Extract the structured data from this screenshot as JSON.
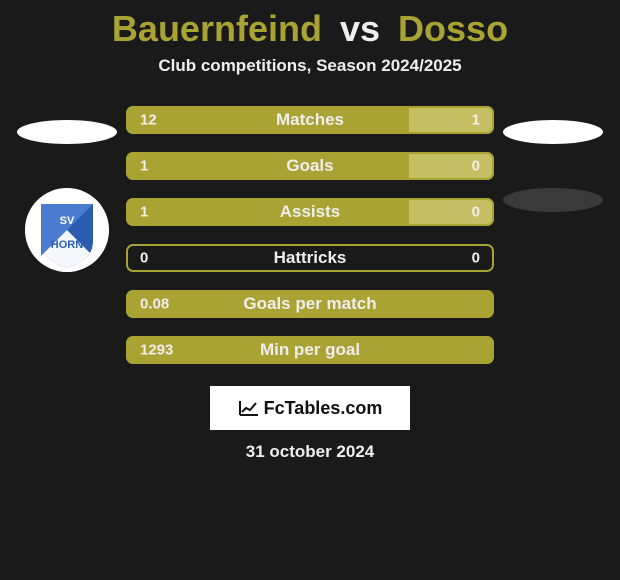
{
  "colors": {
    "background": "#1a1a1a",
    "primary": "#a9a333",
    "secondary": "#c5bf63",
    "text_light": "#eeeeee",
    "border": "#a9a333"
  },
  "title": {
    "player1": "Bauernfeind",
    "vs": "vs",
    "player2": "Dosso",
    "p1_color": "#a9a333",
    "vs_color": "#eeeeee",
    "p2_color": "#a9a333"
  },
  "subtitle": {
    "text": "Club competitions, Season 2024/2025",
    "color": "#eeeeee"
  },
  "left_side": {
    "items": [
      "ellipse_white",
      "club_badge"
    ]
  },
  "right_side": {
    "items": [
      "ellipse_white",
      "ellipse_dark"
    ]
  },
  "bars": [
    {
      "label": "Matches",
      "left_val": "12",
      "right_val": "1",
      "left_pct": 77,
      "right_pct": 23,
      "left_color": "#a9a333",
      "right_color": "#c5bf63",
      "text_color": "#eeeeee"
    },
    {
      "label": "Goals",
      "left_val": "1",
      "right_val": "0",
      "left_pct": 77,
      "right_pct": 23,
      "left_color": "#a9a333",
      "right_color": "#c5bf63",
      "text_color": "#eeeeee"
    },
    {
      "label": "Assists",
      "left_val": "1",
      "right_val": "0",
      "left_pct": 77,
      "right_pct": 23,
      "left_color": "#a9a333",
      "right_color": "#c5bf63",
      "text_color": "#eeeeee"
    },
    {
      "label": "Hattricks",
      "left_val": "0",
      "right_val": "0",
      "left_pct": 0,
      "right_pct": 0,
      "left_color": "#a9a333",
      "right_color": "#c5bf63",
      "text_color": "#eeeeee"
    },
    {
      "label": "Goals per match",
      "left_val": "0.08",
      "right_val": "",
      "left_pct": 100,
      "right_pct": 0,
      "left_color": "#a9a333",
      "right_color": "#c5bf63",
      "text_color": "#eeeeee"
    },
    {
      "label": "Min per goal",
      "left_val": "1293",
      "right_val": "",
      "left_pct": 100,
      "right_pct": 0,
      "left_color": "#a9a333",
      "right_color": "#c5bf63",
      "text_color": "#eeeeee"
    }
  ],
  "logo": {
    "text": "FcTables.com"
  },
  "date": {
    "text": "31 october 2024",
    "color": "#eeeeee"
  },
  "club_badge": {
    "label": "SV HORN",
    "primary": "#2a5db0",
    "secondary": "#ffffff"
  }
}
